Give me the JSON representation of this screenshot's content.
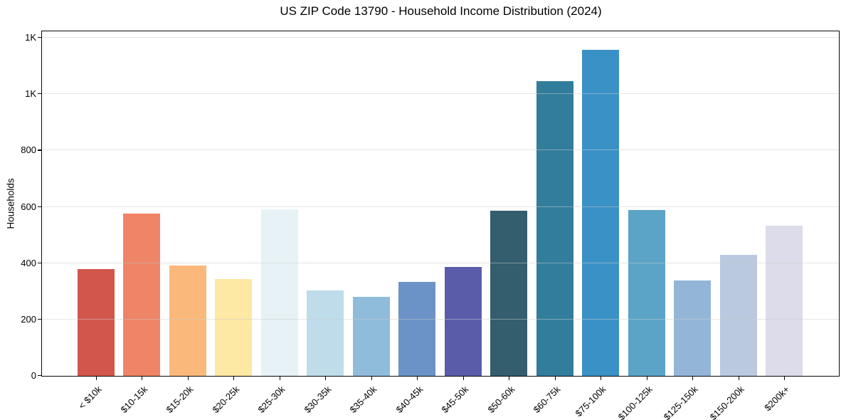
{
  "chart_data": {
    "type": "bar",
    "title": "US ZIP Code 13790 - Household Income Distribution (2024)",
    "xlabel": "",
    "ylabel": "Households",
    "legend": false,
    "grid": true,
    "ylim": [
      0,
      1220
    ],
    "yticks": [
      {
        "value": 0,
        "label": "0"
      },
      {
        "value": 200,
        "label": "200"
      },
      {
        "value": 400,
        "label": "400"
      },
      {
        "value": 600,
        "label": "600"
      },
      {
        "value": 800,
        "label": "800"
      },
      {
        "value": 1000,
        "label": "1K"
      },
      {
        "value": 1200,
        "label": "1K"
      }
    ],
    "categories": [
      "< $10k",
      "$10-15k",
      "$15-20k",
      "$20-25k",
      "$25-30k",
      "$30-35k",
      "$35-40k",
      "$40-45k",
      "$45-50k",
      "$50-60k",
      "$60-75k",
      "$75-100k",
      "$100-125k",
      "$125-150k",
      "$150-200k",
      "$200k+"
    ],
    "values": [
      378,
      576,
      391,
      343,
      590,
      303,
      281,
      334,
      386,
      587,
      1047,
      1158,
      589,
      339,
      430,
      532
    ],
    "bar_colors": [
      "#d2564c",
      "#ef8466",
      "#fab97b",
      "#fde8a4",
      "#e7f2f7",
      "#bedcea",
      "#90bcdb",
      "#6b93c7",
      "#5a5caa",
      "#345e6d",
      "#337d9c",
      "#3a91c6",
      "#5ba4c7",
      "#93b6d8",
      "#bac9e0",
      "#dcdcea"
    ],
    "grid_color": "#cbcbcb",
    "grid_alpha": 0.5,
    "spine_color": "#0a0a0a",
    "text_color": "#000000",
    "background_color": "#ffffff"
  }
}
